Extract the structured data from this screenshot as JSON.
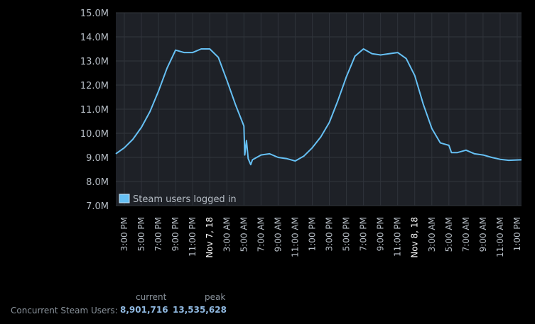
{
  "chart_data": {
    "type": "line",
    "ylim": [
      7000000,
      15000000
    ],
    "y_ticks": [
      "7.0M",
      "8.0M",
      "9.0M",
      "10.0M",
      "11.0M",
      "12.0M",
      "13.0M",
      "14.0M",
      "15.0M"
    ],
    "x_range_hours": [
      0,
      47.5
    ],
    "x_ticks": [
      {
        "h": 1,
        "label": "3:00 PM"
      },
      {
        "h": 3,
        "label": "5:00 PM"
      },
      {
        "h": 5,
        "label": "7:00 PM"
      },
      {
        "h": 7,
        "label": "9:00 PM"
      },
      {
        "h": 9,
        "label": "11:00 PM"
      },
      {
        "h": 11,
        "label": "Nov 7, 18",
        "date": true
      },
      {
        "h": 13,
        "label": "3:00 AM"
      },
      {
        "h": 15,
        "label": "5:00 AM"
      },
      {
        "h": 17,
        "label": "7:00 AM"
      },
      {
        "h": 19,
        "label": "9:00 AM"
      },
      {
        "h": 21,
        "label": "11:00 AM"
      },
      {
        "h": 23,
        "label": "1:00 PM"
      },
      {
        "h": 25,
        "label": "3:00 PM"
      },
      {
        "h": 27,
        "label": "5:00 PM"
      },
      {
        "h": 29,
        "label": "7:00 PM"
      },
      {
        "h": 31,
        "label": "9:00 PM"
      },
      {
        "h": 33,
        "label": "11:00 PM"
      },
      {
        "h": 35,
        "label": "Nov 8, 18",
        "date": true
      },
      {
        "h": 37,
        "label": "3:00 AM"
      },
      {
        "h": 39,
        "label": "5:00 AM"
      },
      {
        "h": 41,
        "label": "7:00 AM"
      },
      {
        "h": 43,
        "label": "9:00 AM"
      },
      {
        "h": 45,
        "label": "11:00 AM"
      },
      {
        "h": 47,
        "label": "1:00 PM"
      }
    ],
    "series": [
      {
        "name": "Steam users logged in",
        "color": "#66c0f4",
        "points": [
          [
            0,
            9.15
          ],
          [
            1,
            9.4
          ],
          [
            2,
            9.75
          ],
          [
            3,
            10.25
          ],
          [
            4,
            10.9
          ],
          [
            5,
            11.75
          ],
          [
            6,
            12.7
          ],
          [
            7,
            13.45
          ],
          [
            8,
            13.35
          ],
          [
            9,
            13.35
          ],
          [
            10,
            13.5
          ],
          [
            11,
            13.5
          ],
          [
            12,
            13.15
          ],
          [
            13,
            12.2
          ],
          [
            14,
            11.2
          ],
          [
            15,
            10.3
          ],
          [
            15.1,
            9.1
          ],
          [
            15.3,
            9.7
          ],
          [
            15.5,
            8.95
          ],
          [
            15.8,
            8.7
          ],
          [
            16,
            8.9
          ],
          [
            17,
            9.1
          ],
          [
            18,
            9.15
          ],
          [
            19,
            9.0
          ],
          [
            20,
            8.95
          ],
          [
            21,
            8.85
          ],
          [
            22,
            9.05
          ],
          [
            23,
            9.4
          ],
          [
            24,
            9.85
          ],
          [
            25,
            10.45
          ],
          [
            26,
            11.35
          ],
          [
            27,
            12.35
          ],
          [
            28,
            13.2
          ],
          [
            29,
            13.5
          ],
          [
            30,
            13.3
          ],
          [
            31,
            13.25
          ],
          [
            32,
            13.3
          ],
          [
            33,
            13.35
          ],
          [
            34,
            13.1
          ],
          [
            35,
            12.4
          ],
          [
            36,
            11.2
          ],
          [
            37,
            10.2
          ],
          [
            38,
            9.6
          ],
          [
            39,
            9.5
          ],
          [
            39.3,
            9.2
          ],
          [
            40,
            9.2
          ],
          [
            41,
            9.3
          ],
          [
            42,
            9.15
          ],
          [
            43,
            9.1
          ],
          [
            44,
            9.0
          ],
          [
            45,
            8.92
          ],
          [
            46,
            8.88
          ],
          [
            47.5,
            8.9
          ]
        ]
      }
    ]
  },
  "stats": {
    "header_current": "current",
    "header_peak": "peak",
    "label": "Concurrent Steam Users:",
    "current": "8,901,716",
    "peak": "13,535,628"
  }
}
